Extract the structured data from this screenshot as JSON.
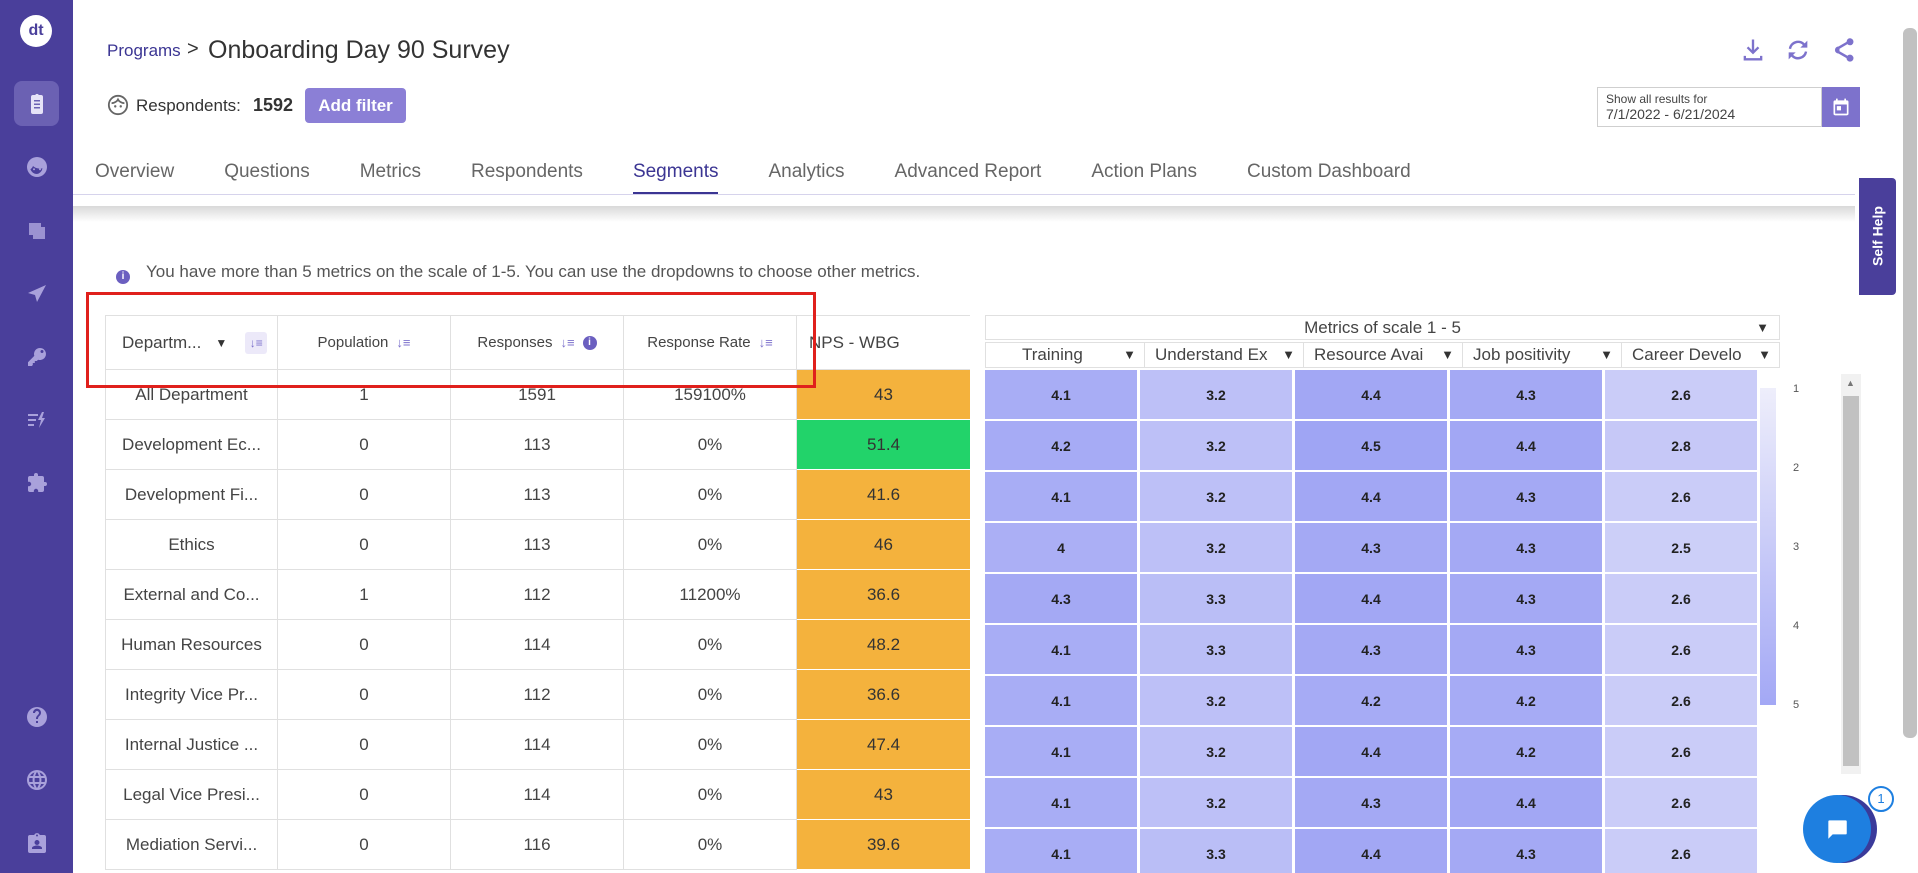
{
  "app": {
    "logo": "dt"
  },
  "rail": {
    "items": [
      {
        "icon": "clipboard-icon",
        "active": true
      },
      {
        "icon": "face-icon",
        "active": false
      },
      {
        "icon": "layers-icon",
        "active": false
      },
      {
        "icon": "send-icon",
        "active": false
      },
      {
        "icon": "key-icon",
        "active": false
      },
      {
        "icon": "action-list-icon",
        "active": false
      },
      {
        "icon": "puzzle-icon",
        "active": false
      },
      {
        "icon": "help-icon",
        "active": false
      },
      {
        "icon": "globe-icon",
        "active": false
      },
      {
        "icon": "id-badge-icon",
        "active": false
      }
    ]
  },
  "header": {
    "breadcrumb_link": "Programs",
    "separator": ">",
    "title": "Onboarding Day 90 Survey",
    "respondents_label": "Respondents:",
    "respondents_count": "1592",
    "add_filter": "Add filter",
    "date_label": "Show all results for",
    "date_value": "7/1/2022 - 6/21/2024",
    "icons": [
      "download-icon",
      "refresh-icon",
      "share-icon"
    ]
  },
  "tabs": [
    {
      "label": "Overview",
      "active": false
    },
    {
      "label": "Questions",
      "active": false
    },
    {
      "label": "Metrics",
      "active": false
    },
    {
      "label": "Respondents",
      "active": false
    },
    {
      "label": "Segments",
      "active": true
    },
    {
      "label": "Analytics",
      "active": false
    },
    {
      "label": "Advanced Report",
      "active": false
    },
    {
      "label": "Action Plans",
      "active": false
    },
    {
      "label": "Custom Dashboard",
      "active": false
    }
  ],
  "self_help": "Self Help",
  "notice": "You have more than 5 metrics on the scale of 1-5. You can use the dropdowns to choose other metrics.",
  "table": {
    "columns": [
      "Departm...",
      "Population",
      "Responses",
      "Response Rate",
      "NPS - WBG"
    ],
    "rows": [
      {
        "dept": "All Department",
        "population": "1",
        "responses": "1591",
        "rate": "159100%",
        "nps": "43",
        "nps_color": "#f4b23d"
      },
      {
        "dept": "Development Ec...",
        "population": "0",
        "responses": "113",
        "rate": "0%",
        "nps": "51.4",
        "nps_color": "#22d36a"
      },
      {
        "dept": "Development Fi...",
        "population": "0",
        "responses": "113",
        "rate": "0%",
        "nps": "41.6",
        "nps_color": "#f4b23d"
      },
      {
        "dept": "Ethics",
        "population": "0",
        "responses": "113",
        "rate": "0%",
        "nps": "46",
        "nps_color": "#f4b23d"
      },
      {
        "dept": "External and Co...",
        "population": "1",
        "responses": "112",
        "rate": "11200%",
        "nps": "36.6",
        "nps_color": "#f4b23d"
      },
      {
        "dept": "Human Resources",
        "population": "0",
        "responses": "114",
        "rate": "0%",
        "nps": "48.2",
        "nps_color": "#f4b23d"
      },
      {
        "dept": "Integrity Vice Pr...",
        "population": "0",
        "responses": "112",
        "rate": "0%",
        "nps": "36.6",
        "nps_color": "#f4b23d"
      },
      {
        "dept": "Internal Justice ...",
        "population": "0",
        "responses": "114",
        "rate": "0%",
        "nps": "47.4",
        "nps_color": "#f4b23d"
      },
      {
        "dept": "Legal Vice Presi...",
        "population": "0",
        "responses": "114",
        "rate": "0%",
        "nps": "43",
        "nps_color": "#f4b23d"
      },
      {
        "dept": "Mediation Servi...",
        "population": "0",
        "responses": "116",
        "rate": "0%",
        "nps": "39.6",
        "nps_color": "#f4b23d"
      }
    ]
  },
  "metrics": {
    "group_title": "Metrics of scale 1 - 5",
    "columns": [
      "Training",
      "Understand Ex",
      "Resource Avai",
      "Job positivity",
      "Career Develo"
    ],
    "values": [
      [
        "4.1",
        "3.2",
        "4.4",
        "4.3",
        "2.6"
      ],
      [
        "4.2",
        "3.2",
        "4.5",
        "4.4",
        "2.8"
      ],
      [
        "4.1",
        "3.2",
        "4.4",
        "4.3",
        "2.6"
      ],
      [
        "4",
        "3.2",
        "4.3",
        "4.3",
        "2.5"
      ],
      [
        "4.3",
        "3.3",
        "4.4",
        "4.3",
        "2.6"
      ],
      [
        "4.1",
        "3.3",
        "4.3",
        "4.3",
        "2.6"
      ],
      [
        "4.1",
        "3.2",
        "4.2",
        "4.2",
        "2.6"
      ],
      [
        "4.1",
        "3.2",
        "4.4",
        "4.2",
        "2.6"
      ],
      [
        "4.1",
        "3.2",
        "4.3",
        "4.4",
        "2.6"
      ],
      [
        "4.1",
        "3.3",
        "4.4",
        "4.3",
        "2.6"
      ]
    ],
    "legend": [
      "1",
      "2",
      "3",
      "4",
      "5"
    ]
  },
  "chat": {
    "badge": "1"
  }
}
